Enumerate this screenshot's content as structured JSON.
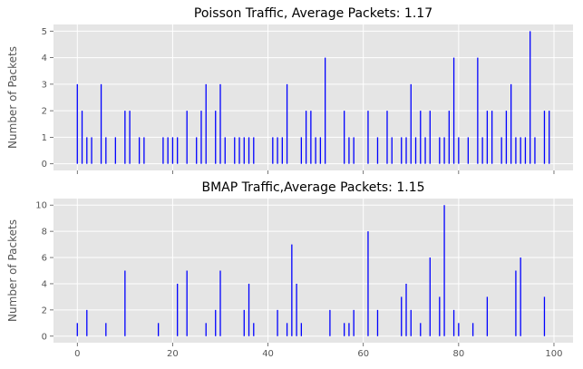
{
  "chart_data": [
    {
      "type": "bar",
      "style": "stem",
      "title": "Poisson Traffic, Average Packets: 1.17",
      "xlabel": "",
      "ylabel": "Number of Packets",
      "xlim": [
        -5,
        104
      ],
      "ylim": [
        -0.25,
        5.25
      ],
      "xticks": [
        0,
        20,
        40,
        60,
        80,
        100
      ],
      "xtick_labels_shown": false,
      "yticks": [
        0,
        1,
        2,
        3,
        4,
        5
      ],
      "grid": true,
      "color": "#0000ff",
      "series": [
        {
          "x": [
            0,
            1,
            2,
            3,
            5,
            6,
            8,
            10,
            11,
            13,
            14,
            18,
            19,
            20,
            21,
            23,
            25,
            26,
            27,
            29,
            30,
            31,
            33,
            34,
            35,
            36,
            37,
            41,
            42,
            43,
            44,
            47,
            48,
            49,
            50,
            51,
            52,
            56,
            57,
            58,
            61,
            63,
            65,
            66,
            68,
            69,
            70,
            71,
            72,
            73,
            74,
            76,
            77,
            78,
            79,
            80,
            82,
            84,
            85,
            86,
            87,
            89,
            90,
            91,
            92,
            93,
            94,
            95,
            96,
            98,
            99
          ],
          "values": [
            3,
            2,
            1,
            1,
            3,
            1,
            1,
            2,
            2,
            1,
            1,
            1,
            1,
            1,
            1,
            2,
            1,
            2,
            3,
            2,
            3,
            1,
            1,
            1,
            1,
            1,
            1,
            1,
            1,
            1,
            3,
            1,
            2,
            2,
            1,
            1,
            4,
            2,
            1,
            1,
            2,
            1,
            2,
            1,
            1,
            1,
            3,
            1,
            2,
            1,
            2,
            1,
            1,
            2,
            4,
            1,
            1,
            4,
            1,
            2,
            2,
            1,
            2,
            3,
            1,
            1,
            1,
            5,
            1,
            2,
            2
          ]
        }
      ]
    },
    {
      "type": "bar",
      "style": "stem",
      "title": "BMAP Traffic,Average Packets: 1.15",
      "xlabel": "",
      "ylabel": "Number of Packets",
      "xlim": [
        -5,
        104
      ],
      "ylim": [
        -0.5,
        10.5
      ],
      "xticks": [
        0,
        20,
        40,
        60,
        80,
        100
      ],
      "xtick_labels_shown": true,
      "yticks": [
        0,
        2,
        4,
        6,
        8,
        10
      ],
      "grid": true,
      "color": "#0000ff",
      "series": [
        {
          "x": [
            0,
            2,
            6,
            10,
            17,
            21,
            23,
            27,
            29,
            30,
            35,
            36,
            37,
            42,
            44,
            45,
            46,
            47,
            53,
            56,
            57,
            58,
            61,
            63,
            68,
            69,
            70,
            72,
            74,
            76,
            77,
            79,
            80,
            83,
            86,
            92,
            93,
            98
          ],
          "values": [
            1,
            2,
            1,
            5,
            1,
            4,
            5,
            1,
            2,
            5,
            2,
            4,
            1,
            2,
            1,
            7,
            4,
            1,
            2,
            1,
            1,
            2,
            8,
            2,
            3,
            4,
            2,
            1,
            6,
            3,
            10,
            2,
            1,
            1,
            3,
            5,
            6,
            3
          ]
        }
      ]
    }
  ]
}
